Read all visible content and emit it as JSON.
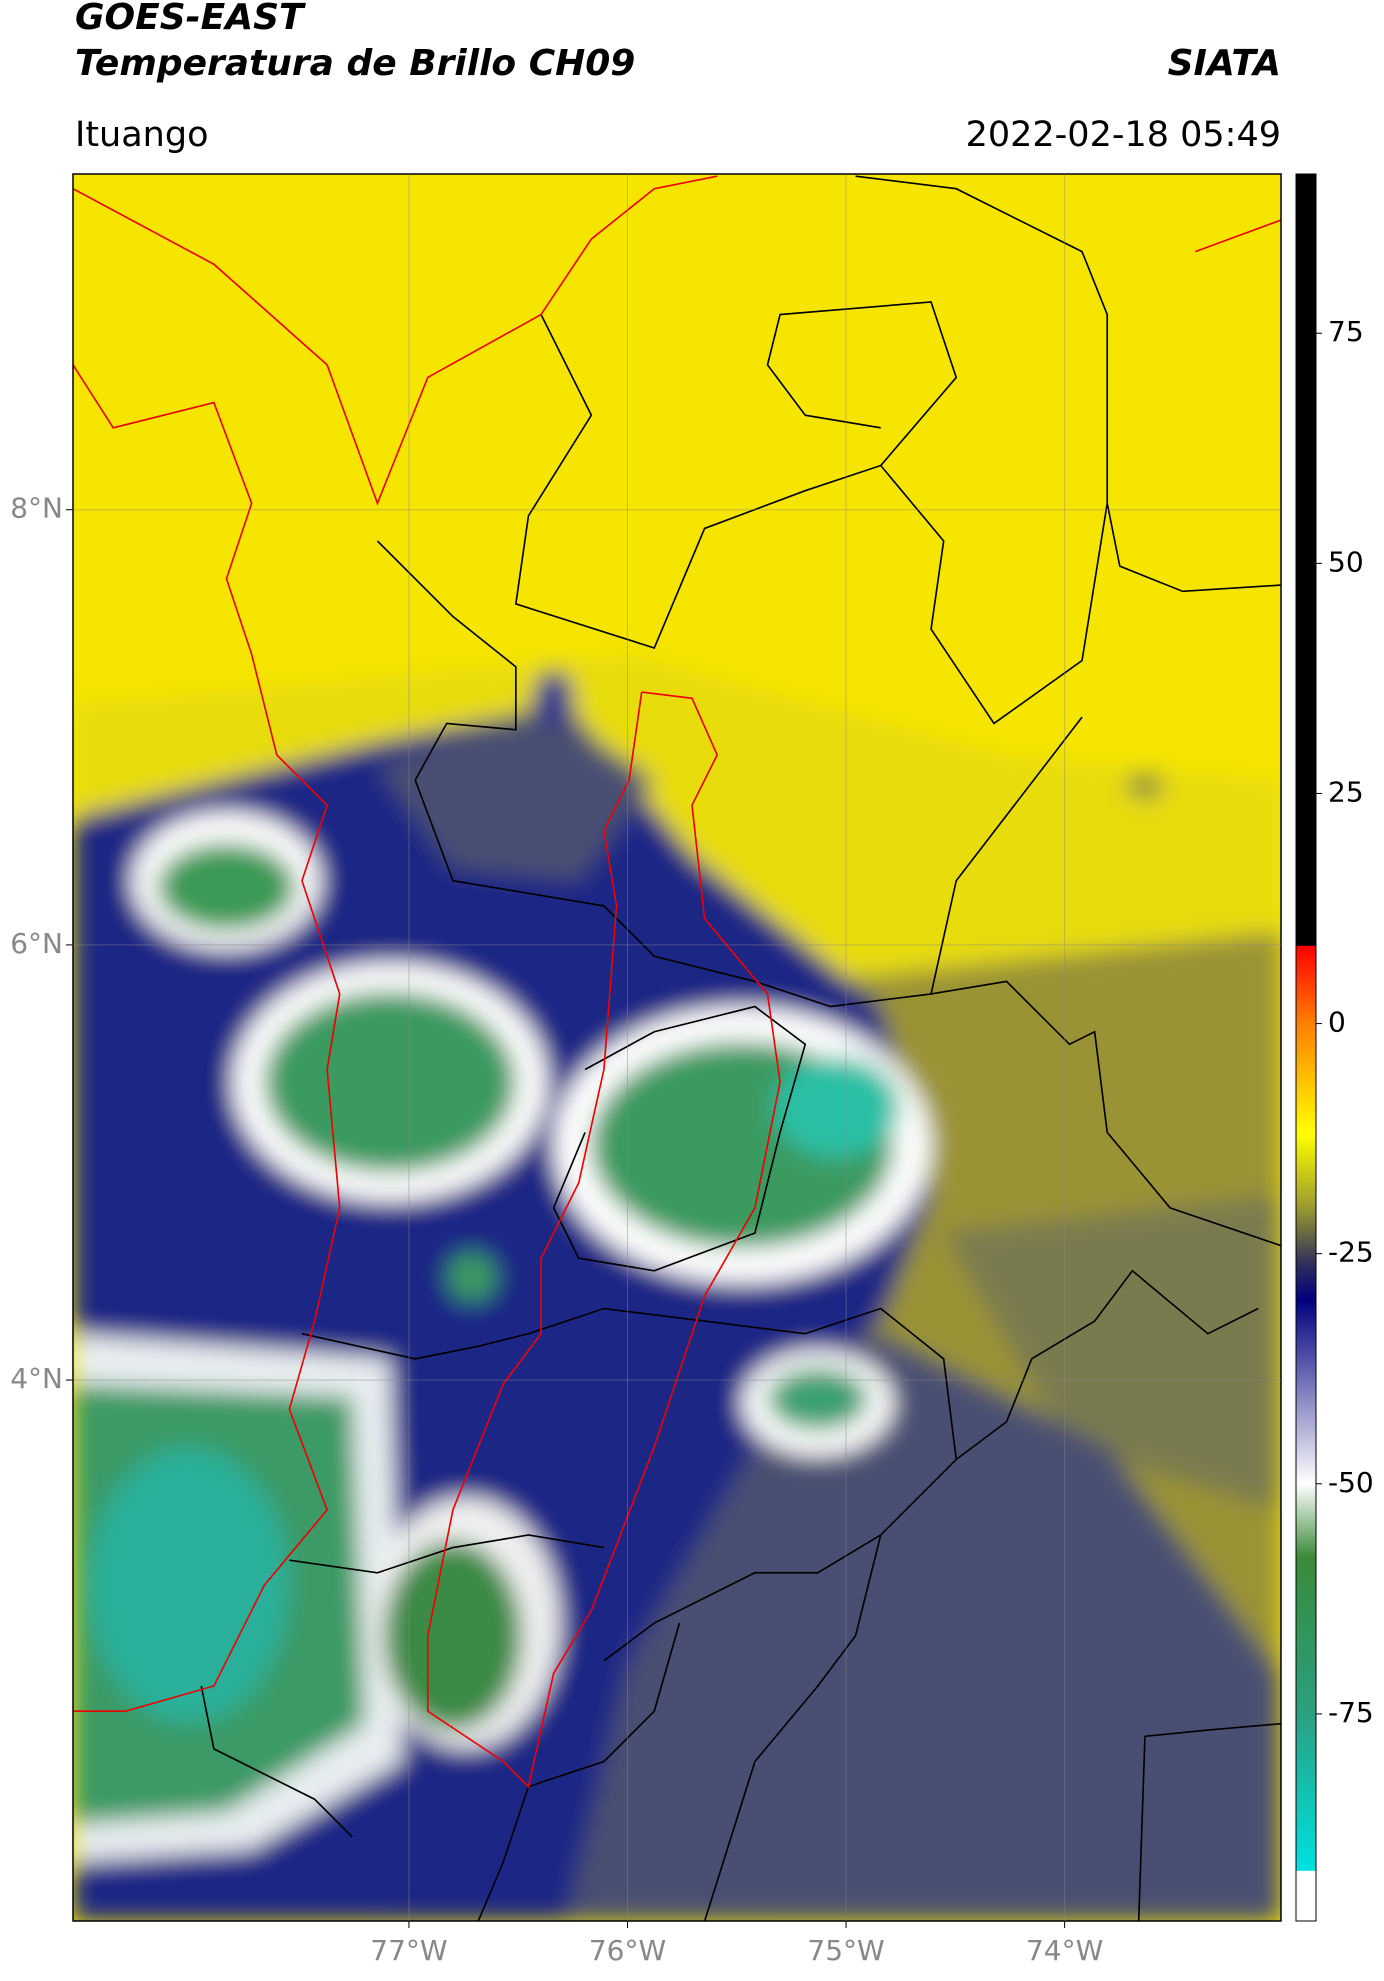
{
  "header": {
    "title_line1": "GOES-EAST",
    "title_line2": "Temperatura de Brillo CH09",
    "source": "SIATA",
    "location": "Ituango",
    "datetime": "2022-02-18 05:49"
  },
  "map": {
    "lon_range": [
      -78.537,
      -73.01
    ],
    "lat_range": [
      1.514,
      9.543
    ],
    "lon_ticks": [
      {
        "value": -77,
        "label": "77°W"
      },
      {
        "value": -76,
        "label": "76°W"
      },
      {
        "value": -75,
        "label": "75°W"
      },
      {
        "value": -74,
        "label": "74°W"
      }
    ],
    "lat_ticks": [
      {
        "value": 8,
        "label": "8°N"
      },
      {
        "value": 6,
        "label": "6°N"
      },
      {
        "value": 4,
        "label": "4°N"
      }
    ]
  },
  "colorbar": {
    "lim": [
      -97.5,
      92.3
    ],
    "ticks": [
      75,
      50,
      25,
      0,
      -25,
      -50,
      -75
    ],
    "stops": [
      {
        "value": 8.5,
        "color": "#000000"
      },
      {
        "value": 8.4,
        "color": "#ff0000"
      },
      {
        "value": 0,
        "color": "#ff7f00"
      },
      {
        "value": -12,
        "color": "#ffff00"
      },
      {
        "value": -20,
        "color": "#9a9a30"
      },
      {
        "value": -26,
        "color": "#30305a"
      },
      {
        "value": -30,
        "color": "#000080"
      },
      {
        "value": -50,
        "color": "#ffffff"
      },
      {
        "value": -58,
        "color": "#3a8a3a"
      },
      {
        "value": -75,
        "color": "#2aa080"
      },
      {
        "value": -92,
        "color": "#00e0e0"
      },
      {
        "value": -92.1,
        "color": "#ffffff"
      }
    ]
  }
}
